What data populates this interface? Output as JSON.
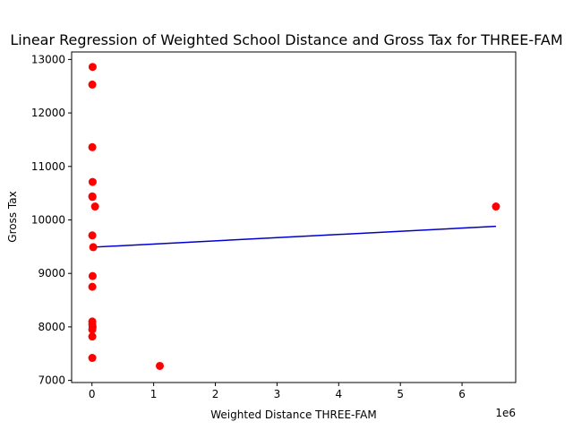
{
  "chart_data": {
    "type": "scatter",
    "title": "Linear Regression of Weighted School Distance and Gross Tax for THREE-FAM",
    "xlabel": "Weighted Distance THREE-FAM",
    "ylabel": "Gross Tax",
    "x_offset_label": "1e6",
    "xlim": [
      -330000,
      6870000
    ],
    "ylim": [
      6960,
      13140
    ],
    "x_ticks": [
      0,
      1000000,
      2000000,
      3000000,
      4000000,
      5000000,
      6000000
    ],
    "x_tick_labels": [
      "0",
      "1",
      "2",
      "3",
      "4",
      "5",
      "6"
    ],
    "y_ticks": [
      7000,
      8000,
      9000,
      10000,
      11000,
      12000,
      13000
    ],
    "y_tick_labels": [
      "7000",
      "8000",
      "9000",
      "10000",
      "11000",
      "12000",
      "13000"
    ],
    "grid": false,
    "legend": "none",
    "series": [
      {
        "type": "scatter",
        "color": "#ff0000",
        "points": [
          [
            10000,
            12860
          ],
          [
            5000,
            12530
          ],
          [
            5000,
            11360
          ],
          [
            10000,
            10710
          ],
          [
            5000,
            10440
          ],
          [
            8000,
            10430
          ],
          [
            50000,
            10250
          ],
          [
            5000,
            9710
          ],
          [
            20000,
            9490
          ],
          [
            10000,
            8950
          ],
          [
            5000,
            8750
          ],
          [
            5000,
            8100
          ],
          [
            5000,
            8050
          ],
          [
            10000,
            8000
          ],
          [
            5000,
            7950
          ],
          [
            5000,
            7820
          ],
          [
            5000,
            7420
          ],
          [
            1100000,
            7270
          ],
          [
            6550000,
            10250
          ]
        ]
      },
      {
        "type": "line",
        "color": "#0000cd",
        "points": [
          [
            5000,
            9490
          ],
          [
            6550000,
            9880
          ]
        ]
      }
    ]
  }
}
